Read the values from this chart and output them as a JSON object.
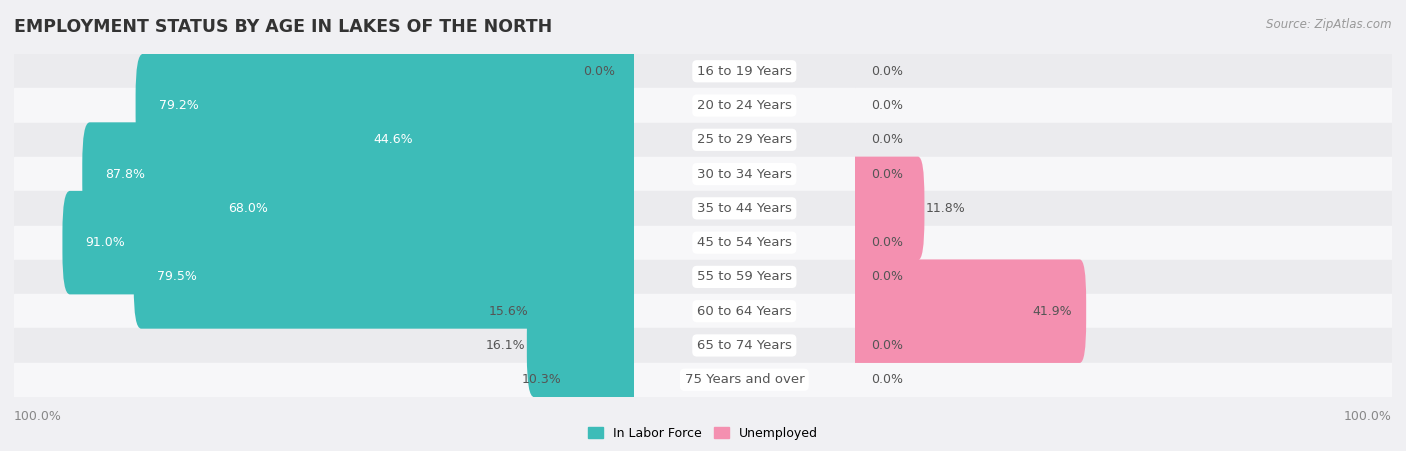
{
  "title": "EMPLOYMENT STATUS BY AGE IN LAKES OF THE NORTH",
  "source": "Source: ZipAtlas.com",
  "categories": [
    "16 to 19 Years",
    "20 to 24 Years",
    "25 to 29 Years",
    "30 to 34 Years",
    "35 to 44 Years",
    "45 to 54 Years",
    "55 to 59 Years",
    "60 to 64 Years",
    "65 to 74 Years",
    "75 Years and over"
  ],
  "labor_force": [
    0.0,
    79.2,
    44.6,
    87.8,
    68.0,
    91.0,
    79.5,
    15.6,
    16.1,
    10.3
  ],
  "unemployed": [
    0.0,
    0.0,
    0.0,
    0.0,
    11.8,
    0.0,
    0.0,
    41.9,
    0.0,
    0.0
  ],
  "labor_force_color": "#3dbcb8",
  "unemployed_color": "#f490b0",
  "row_bg_light": "#ededf0",
  "row_bg_dark": "#e2e2e6",
  "label_color": "#555555",
  "title_color": "#333333",
  "source_color": "#999999",
  "axis_label_color": "#888888",
  "max_value": 100.0,
  "bar_height": 0.62,
  "title_fontsize": 12.5,
  "label_fontsize": 9,
  "category_fontsize": 9.5,
  "source_fontsize": 8.5,
  "legend_fontsize": 9
}
